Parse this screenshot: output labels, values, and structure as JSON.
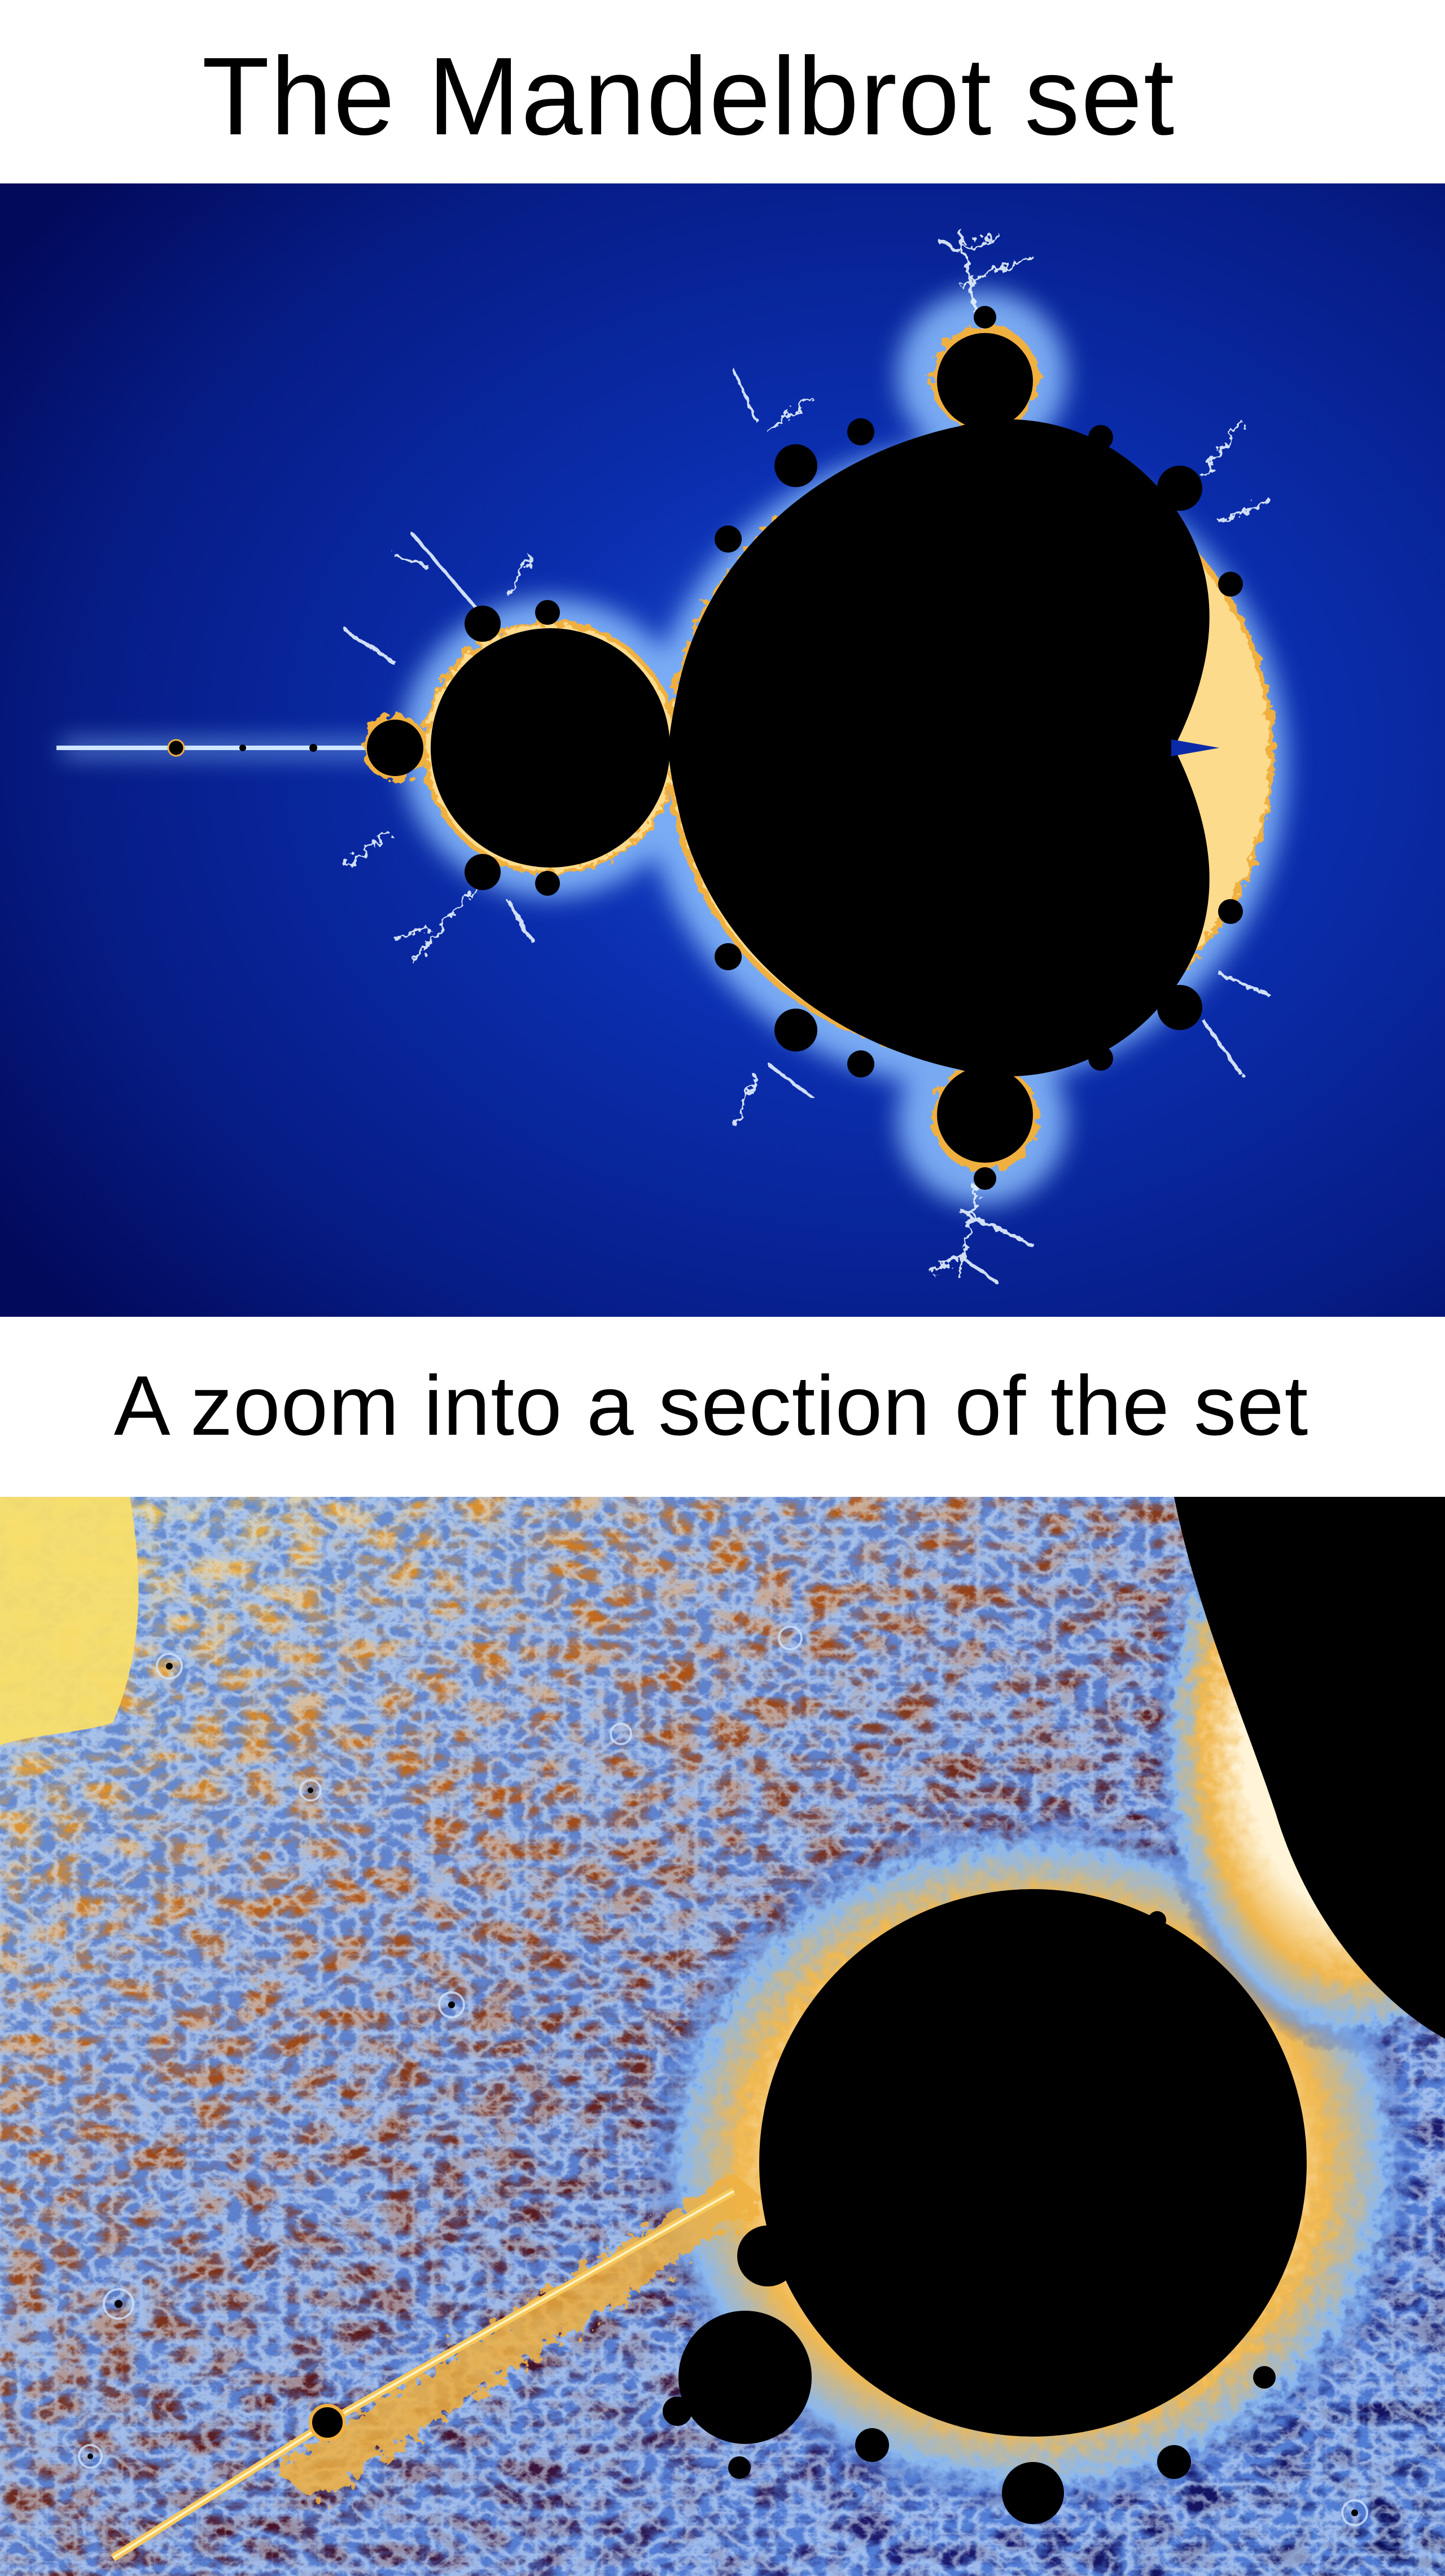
{
  "captions": {
    "title": "The Mandelbrot set",
    "subtitle": "A zoom into a section of the set"
  },
  "images": {
    "overview": {
      "description_icon": "mandelbrot-overview-image",
      "palette": {
        "background_dark": "#020a5c",
        "background_mid": "#0a2aa8",
        "glow": "#cfe8ff",
        "edge_gold": "#f0b040",
        "set": "#000000"
      }
    },
    "zoom": {
      "description_icon": "mandelbrot-zoom-image",
      "palette": {
        "yellow": "#f6d860",
        "orange": "#d47a1c",
        "brown": "#6a1a10",
        "navy": "#0a0a50",
        "blue": "#2a4ab0",
        "light_blue": "#a8d0f0",
        "cream": "#fff4d8",
        "set": "#000000"
      }
    }
  }
}
